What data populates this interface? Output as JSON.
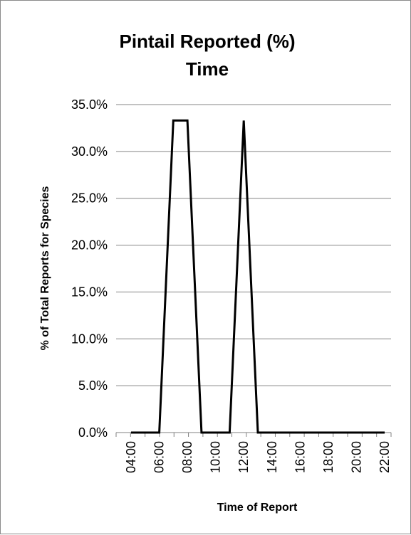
{
  "chart_data": {
    "type": "line",
    "title_lines": [
      "Pintail Reported (%)",
      "Time"
    ],
    "xlabel": "Time of Report",
    "ylabel": "% of Total Reports for Species",
    "ylim": [
      0,
      35
    ],
    "y_ticks": [
      "0.0%",
      "5.0%",
      "10.0%",
      "15.0%",
      "20.0%",
      "25.0%",
      "30.0%",
      "35.0%"
    ],
    "x_ticks": [
      "04:00",
      "06:00",
      "08:00",
      "10:00",
      "12:00",
      "14:00",
      "16:00",
      "18:00",
      "20:00",
      "22:00"
    ],
    "grid": "horizontal",
    "legend": "none",
    "series": [
      {
        "color": "#000000",
        "x": [
          "04:00",
          "05:00",
          "06:00",
          "07:00",
          "08:00",
          "09:00",
          "10:00",
          "11:00",
          "12:00",
          "13:00",
          "14:00",
          "15:00",
          "16:00",
          "17:00",
          "18:00",
          "19:00",
          "20:00",
          "21:00",
          "22:00"
        ],
        "values": [
          0,
          0,
          0,
          33.3,
          33.3,
          0,
          0,
          0,
          33.3,
          0,
          0,
          0,
          0,
          0,
          0,
          0,
          0,
          0,
          0
        ]
      }
    ]
  }
}
